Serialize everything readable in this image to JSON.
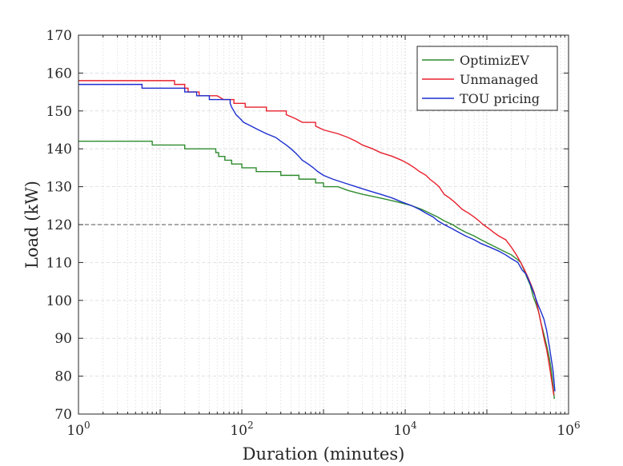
{
  "chart_data": {
    "type": "line",
    "title": "",
    "xlabel": "Duration (minutes)",
    "ylabel": "Load (kW)",
    "xscale": "log",
    "xlim": [
      1,
      1000000
    ],
    "ylim": [
      70,
      170
    ],
    "x_ticks": [
      {
        "value": 1,
        "base": "10",
        "exp": "0"
      },
      {
        "value": 100,
        "base": "10",
        "exp": "2"
      },
      {
        "value": 10000,
        "base": "10",
        "exp": "4"
      },
      {
        "value": 1000000,
        "base": "10",
        "exp": "6"
      }
    ],
    "y_ticks": [
      70,
      80,
      90,
      100,
      110,
      120,
      130,
      140,
      150,
      160,
      170
    ],
    "grid": true,
    "legend_position": "top-right",
    "threshold": {
      "value": 120,
      "style": "dashed",
      "color": "#555555"
    },
    "series": [
      {
        "name": "OptimizEV",
        "color": "#2e8b2e",
        "points": [
          [
            1,
            142
          ],
          [
            8,
            142
          ],
          [
            8,
            141
          ],
          [
            20,
            141
          ],
          [
            20,
            140
          ],
          [
            48,
            140
          ],
          [
            48,
            139
          ],
          [
            52,
            139
          ],
          [
            52,
            138
          ],
          [
            62,
            138
          ],
          [
            62,
            137
          ],
          [
            75,
            137
          ],
          [
            75,
            136
          ],
          [
            100,
            136
          ],
          [
            100,
            135
          ],
          [
            150,
            135
          ],
          [
            150,
            134
          ],
          [
            300,
            134
          ],
          [
            300,
            133
          ],
          [
            500,
            133
          ],
          [
            500,
            132
          ],
          [
            800,
            132
          ],
          [
            800,
            131
          ],
          [
            1000,
            131
          ],
          [
            1000,
            130
          ],
          [
            1500,
            130
          ],
          [
            2000,
            129
          ],
          [
            3000,
            128
          ],
          [
            5000,
            127
          ],
          [
            8000,
            126
          ],
          [
            12000,
            125
          ],
          [
            16000,
            124
          ],
          [
            20000,
            123
          ],
          [
            25000,
            122
          ],
          [
            30000,
            121
          ],
          [
            38000,
            120
          ],
          [
            45000,
            119
          ],
          [
            55000,
            118
          ],
          [
            70000,
            117
          ],
          [
            85000,
            116
          ],
          [
            105000,
            115
          ],
          [
            130000,
            114
          ],
          [
            160000,
            113
          ],
          [
            200000,
            112
          ],
          [
            230000,
            111
          ],
          [
            260000,
            110
          ],
          [
            285000,
            108
          ],
          [
            310000,
            106
          ],
          [
            340000,
            104
          ],
          [
            370000,
            101
          ],
          [
            400000,
            99
          ],
          [
            430000,
            97
          ],
          [
            460000,
            94
          ],
          [
            500000,
            91
          ],
          [
            540000,
            88
          ],
          [
            580000,
            85
          ],
          [
            620000,
            81
          ],
          [
            650000,
            77
          ],
          [
            670000,
            74
          ]
        ]
      },
      {
        "name": "Unmanaged",
        "color": "#e8202c",
        "points": [
          [
            1,
            158
          ],
          [
            15,
            158
          ],
          [
            15,
            157
          ],
          [
            20,
            157
          ],
          [
            20,
            156
          ],
          [
            22,
            156
          ],
          [
            22,
            155
          ],
          [
            30,
            155
          ],
          [
            30,
            154
          ],
          [
            50,
            154
          ],
          [
            60,
            153
          ],
          [
            80,
            153
          ],
          [
            80,
            152
          ],
          [
            110,
            152
          ],
          [
            110,
            151
          ],
          [
            200,
            151
          ],
          [
            200,
            150
          ],
          [
            350,
            150
          ],
          [
            350,
            149
          ],
          [
            450,
            148
          ],
          [
            550,
            147
          ],
          [
            800,
            147
          ],
          [
            800,
            146
          ],
          [
            1000,
            145
          ],
          [
            1500,
            144
          ],
          [
            2000,
            143
          ],
          [
            2500,
            142
          ],
          [
            3000,
            141
          ],
          [
            4000,
            140
          ],
          [
            5000,
            139
          ],
          [
            7000,
            138
          ],
          [
            9000,
            137
          ],
          [
            11000,
            136
          ],
          [
            13000,
            135
          ],
          [
            15000,
            134
          ],
          [
            18000,
            133
          ],
          [
            20000,
            132
          ],
          [
            23000,
            131
          ],
          [
            26000,
            130
          ],
          [
            30000,
            128
          ],
          [
            35000,
            127
          ],
          [
            40000,
            126
          ],
          [
            50000,
            124
          ],
          [
            60000,
            123
          ],
          [
            70000,
            122
          ],
          [
            80000,
            121
          ],
          [
            90000,
            120
          ],
          [
            105000,
            119
          ],
          [
            120000,
            118
          ],
          [
            140000,
            117
          ],
          [
            170000,
            116
          ],
          [
            200000,
            114
          ],
          [
            230000,
            112
          ],
          [
            260000,
            110
          ],
          [
            290000,
            108
          ],
          [
            320000,
            106
          ],
          [
            350000,
            104
          ],
          [
            380000,
            102
          ],
          [
            410000,
            99
          ],
          [
            440000,
            96
          ],
          [
            470000,
            93
          ],
          [
            500000,
            90
          ],
          [
            540000,
            87
          ],
          [
            580000,
            83
          ],
          [
            620000,
            79
          ],
          [
            660000,
            75
          ]
        ]
      },
      {
        "name": "TOU pricing",
        "color": "#1d2fd0",
        "points": [
          [
            1,
            157
          ],
          [
            6,
            157
          ],
          [
            6,
            156
          ],
          [
            20,
            156
          ],
          [
            20,
            155
          ],
          [
            28,
            155
          ],
          [
            28,
            154
          ],
          [
            40,
            154
          ],
          [
            40,
            153
          ],
          [
            72,
            153
          ],
          [
            72,
            152
          ],
          [
            75,
            151
          ],
          [
            80,
            150
          ],
          [
            85,
            149
          ],
          [
            95,
            148
          ],
          [
            105,
            147
          ],
          [
            130,
            146
          ],
          [
            160,
            145
          ],
          [
            200,
            144
          ],
          [
            260,
            143
          ],
          [
            300,
            142
          ],
          [
            350,
            141
          ],
          [
            400,
            140
          ],
          [
            450,
            139
          ],
          [
            500,
            138
          ],
          [
            550,
            137
          ],
          [
            650,
            136
          ],
          [
            750,
            135
          ],
          [
            850,
            134
          ],
          [
            1000,
            133
          ],
          [
            1300,
            132
          ],
          [
            1800,
            131
          ],
          [
            2500,
            130
          ],
          [
            3500,
            129
          ],
          [
            5000,
            128
          ],
          [
            7000,
            127
          ],
          [
            9000,
            126
          ],
          [
            12000,
            125
          ],
          [
            15000,
            124
          ],
          [
            18000,
            123
          ],
          [
            22000,
            122
          ],
          [
            25000,
            121
          ],
          [
            30000,
            120
          ],
          [
            37000,
            119
          ],
          [
            45000,
            118
          ],
          [
            55000,
            117
          ],
          [
            70000,
            116
          ],
          [
            85000,
            115
          ],
          [
            110000,
            114
          ],
          [
            140000,
            113
          ],
          [
            170000,
            112
          ],
          [
            200000,
            111
          ],
          [
            240000,
            110
          ],
          [
            270000,
            108
          ],
          [
            300000,
            107
          ],
          [
            330000,
            105
          ],
          [
            360000,
            103
          ],
          [
            390000,
            101
          ],
          [
            420000,
            99
          ],
          [
            460000,
            97
          ],
          [
            500000,
            95
          ],
          [
            540000,
            92
          ],
          [
            580000,
            88
          ],
          [
            620000,
            84
          ],
          [
            650000,
            81
          ],
          [
            680000,
            76
          ]
        ]
      }
    ]
  }
}
